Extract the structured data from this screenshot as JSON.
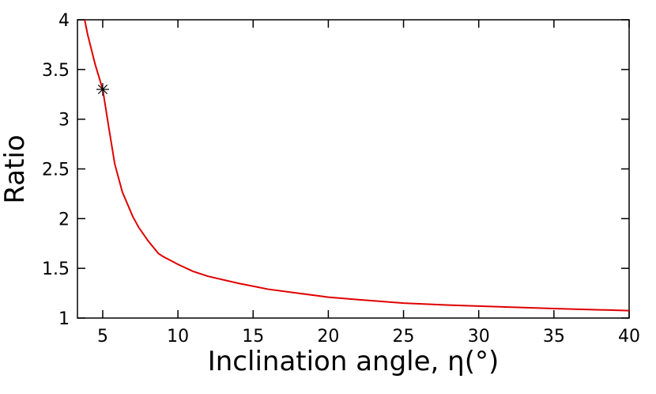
{
  "chart_data": {
    "type": "line",
    "xlabel": "Inclination angle, η(°)",
    "ylabel": "Ratio",
    "xlim": [
      3.32,
      40
    ],
    "ylim": [
      1,
      4
    ],
    "xticks": [
      5,
      10,
      15,
      20,
      25,
      30,
      35,
      40
    ],
    "yticks": [
      1,
      1.5,
      2,
      2.5,
      3,
      3.5,
      4
    ],
    "series": [
      {
        "color": "#e00000",
        "marker": "none",
        "x": [
          3.8,
          4,
          4.5,
          5,
          5.4,
          5.8,
          6.3,
          7,
          7.4,
          8,
          8.7,
          9,
          10,
          11,
          12,
          14,
          15,
          16,
          18,
          20,
          22,
          25,
          28,
          30,
          33,
          35,
          38,
          40
        ],
        "values": [
          4.0,
          3.85,
          3.55,
          3.3,
          2.92,
          2.55,
          2.27,
          2.02,
          1.91,
          1.78,
          1.65,
          1.62,
          1.54,
          1.47,
          1.42,
          1.35,
          1.32,
          1.29,
          1.25,
          1.21,
          1.185,
          1.15,
          1.13,
          1.12,
          1.105,
          1.095,
          1.083,
          1.075
        ]
      },
      {
        "color": "#000000",
        "marker": "star",
        "x": [
          5
        ],
        "values": [
          3.3
        ]
      }
    ]
  }
}
